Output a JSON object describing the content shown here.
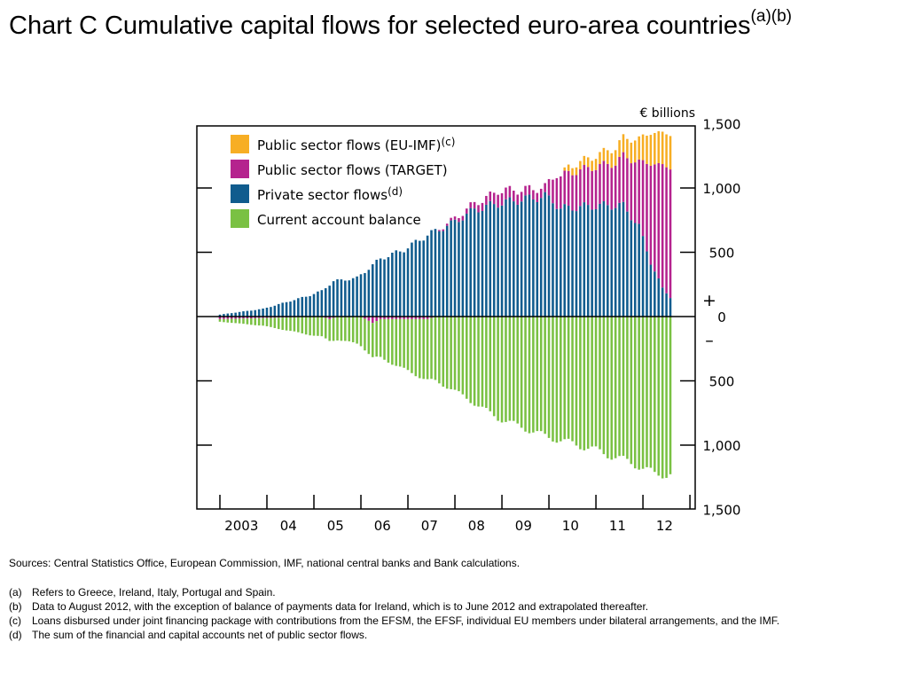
{
  "title": {
    "main": "Chart C  Cumulative capital flows for selected euro-area countries",
    "superscript": "(a)(b)"
  },
  "colors": {
    "public_eu_imf": "#f7ae24",
    "public_target": "#b5238e",
    "private": "#105c8e",
    "current_account": "#7ac143",
    "axis": "#000000"
  },
  "legend": [
    {
      "key": "public_eu_imf",
      "label": "Public sector flows (EU-IMF)",
      "note": "(c)"
    },
    {
      "key": "public_target",
      "label": "Public sector flows (TARGET)",
      "note": ""
    },
    {
      "key": "private",
      "label": "Private sector flows",
      "note": "(d)"
    },
    {
      "key": "current_account",
      "label": "Current account balance",
      "note": ""
    }
  ],
  "chart_data": {
    "type": "bar",
    "stacked": true,
    "title": "Cumulative capital flows for selected euro-area countries",
    "unit": "€ billions",
    "ylim": [
      -1500,
      1500
    ],
    "y_ticks": [
      1500,
      1000,
      500,
      0,
      500,
      1000,
      1500
    ],
    "sign_plus": "+",
    "sign_minus": "–",
    "x_labels": [
      "2003",
      "04",
      "05",
      "06",
      "07",
      "08",
      "09",
      "10",
      "11",
      "12"
    ],
    "period": {
      "start": "2003-01",
      "end": "2012-08",
      "frequency": "monthly"
    },
    "legend_position": "top-left",
    "grid": false,
    "keypoints": {
      "private": [
        [
          "2003-01",
          15
        ],
        [
          "2003-12",
          60
        ],
        [
          "2004-12",
          165
        ],
        [
          "2005-03",
          200
        ],
        [
          "2005-06",
          275
        ],
        [
          "2005-12",
          300
        ],
        [
          "2006-06",
          450
        ],
        [
          "2006-12",
          520
        ],
        [
          "2007-06",
          635
        ],
        [
          "2007-12",
          720
        ],
        [
          "2008-06",
          830
        ],
        [
          "2008-12",
          880
        ],
        [
          "2009-06",
          910
        ],
        [
          "2009-12",
          935
        ],
        [
          "2010-02",
          900
        ],
        [
          "2010-04",
          840
        ],
        [
          "2010-12",
          860
        ],
        [
          "2011-06",
          865
        ],
        [
          "2011-08",
          860
        ],
        [
          "2011-12",
          700
        ],
        [
          "2012-03",
          420
        ],
        [
          "2012-06",
          220
        ],
        [
          "2012-08",
          150
        ]
      ],
      "public_target": [
        [
          "2003-01",
          -20
        ],
        [
          "2005-03",
          0
        ],
        [
          "2005-05",
          -20
        ],
        [
          "2005-07",
          0
        ],
        [
          "2006-01",
          0
        ],
        [
          "2006-04",
          -50
        ],
        [
          "2006-06",
          -20
        ],
        [
          "2007-06",
          -20
        ],
        [
          "2007-09",
          10
        ],
        [
          "2007-12",
          20
        ],
        [
          "2008-06",
          50
        ],
        [
          "2008-10",
          75
        ],
        [
          "2008-12",
          100
        ],
        [
          "2009-06",
          75
        ],
        [
          "2009-12",
          70
        ],
        [
          "2010-03",
          240
        ],
        [
          "2010-06",
          270
        ],
        [
          "2010-12",
          300
        ],
        [
          "2011-06",
          330
        ],
        [
          "2011-12",
          500
        ],
        [
          "2012-03",
          770
        ],
        [
          "2012-06",
          960
        ],
        [
          "2012-08",
          1000
        ]
      ],
      "public_eu_imf": [
        [
          "2010-04",
          0
        ],
        [
          "2010-06",
          50
        ],
        [
          "2010-12",
          80
        ],
        [
          "2011-06",
          120
        ],
        [
          "2011-12",
          180
        ],
        [
          "2012-03",
          240
        ],
        [
          "2012-08",
          260
        ]
      ],
      "current_account": [
        [
          "2003-01",
          -20
        ],
        [
          "2003-12",
          -60
        ],
        [
          "2004-12",
          -140
        ],
        [
          "2005-12",
          -210
        ],
        [
          "2006-12",
          -390
        ],
        [
          "2007-12",
          -560
        ],
        [
          "2008-12",
          -790
        ],
        [
          "2009-12",
          -930
        ],
        [
          "2010-12",
          -1030
        ],
        [
          "2011-12",
          -1160
        ],
        [
          "2012-04",
          -1230
        ],
        [
          "2012-08",
          -1220
        ]
      ]
    }
  },
  "notes": {
    "sources": "Sources:  Central Statistics Office, European Commission, IMF, national central banks and Bank calculations.",
    "items": [
      {
        "label": "(a)",
        "text": "Refers to Greece, Ireland, Italy, Portugal and Spain."
      },
      {
        "label": "(b)",
        "text": "Data to August 2012, with the exception of balance of payments data for Ireland, which is to June 2012 and extrapolated thereafter."
      },
      {
        "label": "(c)",
        "text": "Loans disbursed under joint financing package with contributions from the EFSM, the EFSF, individual EU members under bilateral arrangements, and the IMF."
      },
      {
        "label": "(d)",
        "text": "The sum of the financial and capital accounts net of public sector flows."
      }
    ]
  }
}
